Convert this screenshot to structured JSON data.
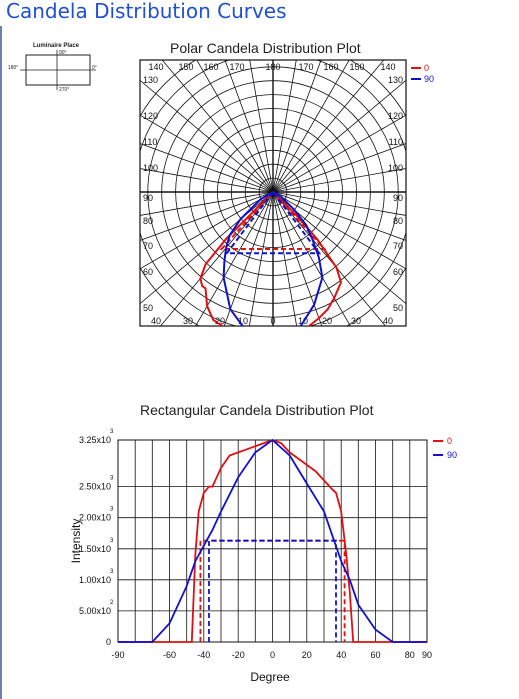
{
  "page": {
    "title": "Candela Distribution Curves"
  },
  "luminaire_place": {
    "title": "Luminaire Place",
    "labels": {
      "top": "90°",
      "left": "180°",
      "right": "0°",
      "bottom": "270°"
    }
  },
  "colors": {
    "series_0": "#e01010",
    "series_90": "#1010d0",
    "title": "#1f4fd6"
  },
  "chart_data": [
    {
      "type": "polar",
      "title": "Polar Candela Distribution Plot",
      "radial_max": 3250,
      "angle_labels": {
        "top": [
          "140",
          "150",
          "160",
          "170",
          "180",
          "170",
          "160",
          "150",
          "140"
        ],
        "left": [
          "130",
          "120",
          "110",
          "100",
          "90",
          "80",
          "70",
          "60",
          "50"
        ],
        "right": [
          "130",
          "120",
          "110",
          "100",
          "90",
          "80",
          "70",
          "60",
          "50"
        ],
        "bottom": [
          "40",
          "30",
          "20",
          "10",
          "0",
          "10",
          "20",
          "30",
          "40"
        ]
      },
      "legend": [
        "0",
        "90"
      ],
      "legend_position": "top-right",
      "series": [
        {
          "name": "0",
          "solid": {
            "angles": [
              -47,
              -45,
              -43,
              -40,
              -37,
              -35,
              -30,
              -25,
              -20,
              -15,
              -10,
              -5,
              0,
              5,
              10,
              15,
              20,
              25,
              30,
              35,
              37,
              40,
              43,
              45,
              47
            ],
            "values": [
              0,
              1400,
              2100,
              2400,
              2500,
              2500,
              2800,
              3000,
              3050,
              3100,
              3150,
              3200,
              3250,
              3200,
              3050,
              2950,
              2850,
              2750,
              2600,
              2450,
              2400,
              2100,
              1400,
              800,
              0
            ]
          },
          "dashed": {
            "angles": [
              -42,
              -42,
              42,
              42
            ],
            "values": [
              0,
              1630,
              1630,
              0
            ]
          }
        },
        {
          "name": "90",
          "solid": {
            "angles": [
              -70,
              -60,
              -50,
              -45,
              -40,
              -35,
              -30,
              -20,
              -10,
              0,
              10,
              20,
              30,
              35,
              40,
              45,
              50,
              60,
              70
            ],
            "values": [
              0,
              300,
              900,
              1300,
              1550,
              1800,
              2100,
              2650,
              3050,
              3250,
              3000,
              2550,
              2100,
              1700,
              1300,
              1000,
              600,
              200,
              0
            ]
          },
          "dashed": {
            "angles": [
              -37,
              -37,
              37,
              37
            ],
            "values": [
              0,
              1630,
              1630,
              0
            ]
          }
        }
      ]
    },
    {
      "type": "line",
      "title": "Rectangular Candela Distribution Plot",
      "xlabel": "Degree",
      "ylabel": "Intensity",
      "xlim": [
        -90,
        90
      ],
      "ylim": [
        0,
        3250
      ],
      "x_ticks": [
        "-90",
        "-60",
        "-40",
        "-20",
        "0",
        "20",
        "40",
        "60",
        "80",
        "90"
      ],
      "x_tick_values": [
        -90,
        -60,
        -40,
        -20,
        0,
        20,
        40,
        60,
        80,
        90
      ],
      "y_ticks": [
        {
          "value": 0,
          "mantissa": "0",
          "exp": ""
        },
        {
          "value": 500,
          "mantissa": "5.00x10",
          "exp": "2"
        },
        {
          "value": 1000,
          "mantissa": "1.00x10",
          "exp": "3"
        },
        {
          "value": 1500,
          "mantissa": "1.50x10",
          "exp": "3"
        },
        {
          "value": 2000,
          "mantissa": "2.00x10",
          "exp": "3"
        },
        {
          "value": 2500,
          "mantissa": "2.50x10",
          "exp": "3"
        },
        {
          "value": 3250,
          "mantissa": "3.25x10",
          "exp": "3"
        }
      ],
      "grid": true,
      "legend": [
        "0",
        "90"
      ],
      "legend_position": "top-right",
      "series": [
        {
          "name": "0",
          "solid": {
            "x": [
              -90,
              -60,
              -50,
              -47,
              -45,
              -43,
              -40,
              -37,
              -35,
              -30,
              -25,
              -20,
              -15,
              -10,
              -5,
              0,
              5,
              10,
              15,
              20,
              25,
              30,
              35,
              37,
              40,
              43,
              45,
              47,
              50,
              60,
              90
            ],
            "y": [
              0,
              0,
              0,
              0,
              1400,
              2100,
              2400,
              2500,
              2500,
              2800,
              3000,
              3050,
              3100,
              3150,
              3200,
              3250,
              3200,
              3050,
              2950,
              2850,
              2750,
              2600,
              2450,
              2400,
              2100,
              1400,
              800,
              0,
              0,
              0,
              0
            ]
          },
          "dashed": {
            "x": [
              -42,
              -42,
              42,
              42
            ],
            "y": [
              0,
              1630,
              1630,
              0
            ]
          }
        },
        {
          "name": "90",
          "solid": {
            "x": [
              -90,
              -70,
              -60,
              -50,
              -45,
              -40,
              -35,
              -30,
              -20,
              -10,
              0,
              10,
              20,
              30,
              35,
              40,
              45,
              50,
              60,
              70,
              90
            ],
            "y": [
              0,
              0,
              300,
              900,
              1300,
              1550,
              1800,
              2100,
              2650,
              3050,
              3250,
              3000,
              2550,
              2100,
              1700,
              1300,
              1000,
              600,
              200,
              0,
              0
            ]
          },
          "dashed": {
            "x": [
              -37,
              -37,
              37,
              37
            ],
            "y": [
              0,
              1630,
              1630,
              0
            ]
          }
        }
      ]
    }
  ]
}
